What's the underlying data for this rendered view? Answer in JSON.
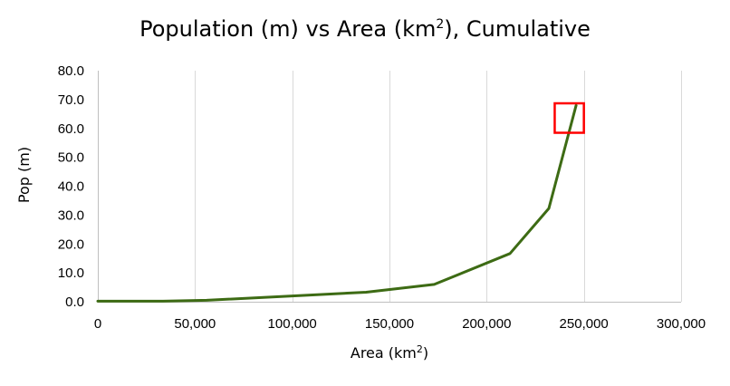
{
  "chart_data": {
    "type": "line",
    "title": "Population (m) vs Area (km",
    "title_sup": "2",
    "title_suffix": "), Cumulative",
    "xlabel": "Area (km",
    "xlabel_sup": "2",
    "xlabel_suffix": ")",
    "ylabel": "Pop (m)",
    "xlim": [
      0,
      300000
    ],
    "ylim": [
      0,
      80
    ],
    "x_ticks": [
      0,
      50000,
      100000,
      150000,
      200000,
      250000,
      300000
    ],
    "x_tick_labels": [
      "0",
      "50,000",
      "100,000",
      "150,000",
      "200,000",
      "250,000",
      "300,000"
    ],
    "y_ticks": [
      0,
      10,
      20,
      30,
      40,
      50,
      60,
      70,
      80
    ],
    "y_tick_labels": [
      "0.0",
      "10.0",
      "20.0",
      "30.0",
      "40.0",
      "50.0",
      "60.0",
      "70.0",
      "80.0"
    ],
    "grid": "vertical",
    "series": [
      {
        "color": "#3d6b14",
        "x": [
          0,
          33500,
          56000,
          138000,
          173000,
          212000,
          232000,
          246000
        ],
        "y": [
          0.2,
          0.2,
          0.5,
          3.3,
          6.0,
          16.7,
          32.3,
          68.0
        ]
      }
    ],
    "highlight": {
      "x": [
        235000,
        250000
      ],
      "y": [
        58.5,
        68.7
      ],
      "color": "#ff0000"
    }
  }
}
